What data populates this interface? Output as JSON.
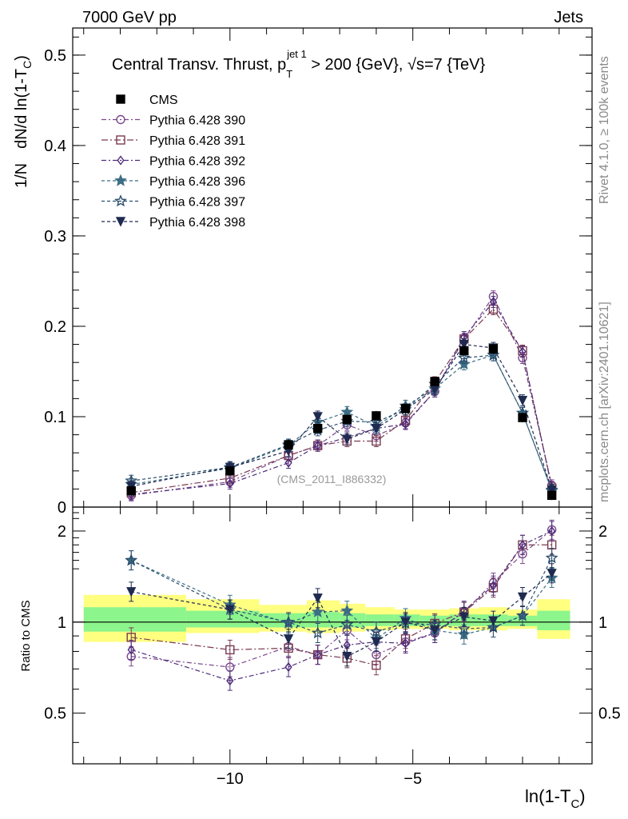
{
  "header": {
    "left": "7000 GeV pp",
    "right": "Jets"
  },
  "side_labels": {
    "right_top": "Rivet 4.1.0, ≥ 100k events",
    "right_bottom": "mcplots.cern.ch [arXiv:2401.10621]"
  },
  "chart_data": [
    {
      "type": "line",
      "panel": "main",
      "title": {
        "main": "Central Transv. Thrust, p",
        "sub": "T",
        "sup": "jet 1",
        "rest": " > 200 {GeV}, √s=7 {TeV}"
      },
      "ylabel": {
        "part1": "1/N",
        "part2": "dN/d ln(1-T",
        "sub": "C",
        "part3": ")"
      },
      "watermark": "(CMS_2011_I886332)",
      "ylim": [
        0,
        0.53
      ],
      "yticks": [
        {
          "v": 0,
          "label": "0"
        },
        {
          "v": 0.1,
          "label": "0.1"
        },
        {
          "v": 0.2,
          "label": "0.2"
        },
        {
          "v": 0.3,
          "label": "0.3"
        },
        {
          "v": 0.4,
          "label": "0.4"
        },
        {
          "v": 0.5,
          "label": "0.5"
        }
      ],
      "x": [
        -12.7,
        -10.0,
        -8.4,
        -7.6,
        -6.8,
        -6.0,
        -5.2,
        -4.4,
        -3.6,
        -2.8,
        -2.0,
        -1.2
      ],
      "series": [
        {
          "name": "CMS",
          "marker": "square-filled",
          "color": "#000000",
          "dash": "",
          "values": [
            0.018,
            0.04,
            0.069,
            0.087,
            0.097,
            0.101,
            0.109,
            0.139,
            0.173,
            0.175,
            0.099,
            0.013
          ]
        },
        {
          "name": "Pythia 6.428 390",
          "marker": "circle",
          "color": "#7b4a8c",
          "dash": "6,3,2,3",
          "values": [
            0.013,
            0.028,
            0.057,
            0.068,
            0.091,
            0.079,
            0.093,
            0.128,
            0.186,
            0.233,
            0.165,
            0.024
          ]
        },
        {
          "name": "Pythia 6.428 391",
          "marker": "square",
          "color": "#7a3b52",
          "dash": "8,3,2,3",
          "values": [
            0.016,
            0.032,
            0.057,
            0.068,
            0.073,
            0.073,
            0.096,
            0.138,
            0.186,
            0.219,
            0.173,
            0.021
          ]
        },
        {
          "name": "Pythia 6.428 392",
          "marker": "diamond",
          "color": "#4d2b7a",
          "dash": "6,3,2,3",
          "values": [
            0.014,
            0.026,
            0.049,
            0.068,
            0.077,
            0.087,
            0.092,
            0.128,
            0.188,
            0.227,
            0.172,
            0.022
          ]
        },
        {
          "name": "Pythia 6.428 396",
          "marker": "star-filled",
          "color": "#3c6e85",
          "dash": "4,3",
          "values": [
            0.025,
            0.043,
            0.068,
            0.094,
            0.105,
            0.089,
            0.112,
            0.131,
            0.158,
            0.168,
            0.104,
            0.018
          ]
        },
        {
          "name": "Pythia 6.428 397",
          "marker": "star",
          "color": "#2d4f6e",
          "dash": "4,3",
          "values": [
            0.029,
            0.044,
            0.069,
            0.085,
            0.095,
            0.094,
            0.108,
            0.136,
            0.165,
            0.168,
            0.104,
            0.019
          ]
        },
        {
          "name": "Pythia 6.428 398",
          "marker": "triangle-down-filled",
          "color": "#1f2a50",
          "dash": "4,3",
          "values": [
            0.023,
            0.044,
            0.062,
            0.1,
            0.075,
            0.087,
            0.108,
            0.13,
            0.18,
            0.176,
            0.118,
            0.019
          ]
        }
      ]
    },
    {
      "type": "line",
      "panel": "ratio",
      "ylabel": "Ratio to CMS",
      "xlabel": {
        "main": "ln(1-T",
        "sub": "C",
        "rest": ")"
      },
      "xlim": [
        -14.3,
        -0.1
      ],
      "ylim": [
        0.34,
        2.4
      ],
      "yticks": [
        {
          "v": 0.5,
          "label": "0.5"
        },
        {
          "v": 1,
          "label": "1"
        },
        {
          "v": 2,
          "label": "2"
        }
      ],
      "xticks": [
        {
          "v": -10,
          "label": "−10"
        },
        {
          "v": -5,
          "label": "−5"
        }
      ],
      "bands": {
        "edges": [
          -14.0,
          -11.2,
          -9.2,
          -7.9,
          -7.0,
          -6.3,
          -5.5,
          -4.8,
          -4.0,
          -3.2,
          -2.4,
          -1.6,
          -0.7
        ],
        "yellow_low": [
          0.86,
          0.92,
          0.93,
          0.92,
          0.93,
          0.94,
          0.95,
          0.95,
          0.94,
          0.94,
          0.95,
          0.88
        ],
        "yellow_high": [
          1.23,
          1.19,
          1.14,
          1.18,
          1.15,
          1.12,
          1.1,
          1.1,
          1.11,
          1.12,
          1.1,
          1.19
        ],
        "green_low": [
          0.93,
          0.96,
          0.96,
          0.96,
          0.96,
          0.97,
          0.97,
          0.97,
          0.97,
          0.97,
          0.97,
          0.94
        ],
        "green_high": [
          1.12,
          1.09,
          1.07,
          1.08,
          1.07,
          1.06,
          1.06,
          1.05,
          1.06,
          1.06,
          1.05,
          1.09
        ]
      },
      "series": [
        {
          "name": "Pythia 6.428 390",
          "values": [
            0.77,
            0.71,
            0.83,
            0.78,
            0.94,
            0.78,
            0.86,
            0.92,
            1.08,
            1.35,
            1.68,
            2.02
          ]
        },
        {
          "name": "Pythia 6.428 391",
          "values": [
            0.89,
            0.81,
            0.82,
            0.78,
            0.76,
            0.72,
            0.88,
            0.99,
            1.08,
            1.3,
            1.8,
            1.8
          ]
        },
        {
          "name": "Pythia 6.428 392",
          "values": [
            0.81,
            0.64,
            0.71,
            0.78,
            0.84,
            0.86,
            0.85,
            0.92,
            1.09,
            1.32,
            1.8,
            2.0
          ]
        },
        {
          "name": "Pythia 6.428 396",
          "values": [
            1.6,
            1.14,
            0.99,
            1.08,
            1.09,
            0.88,
            1.03,
            0.94,
            0.91,
            0.96,
            1.05,
            1.4
          ]
        },
        {
          "name": "Pythia 6.428 397",
          "values": [
            1.6,
            1.1,
            1.0,
            0.92,
            0.98,
            0.93,
            0.99,
            0.98,
            0.95,
            0.96,
            1.05,
            1.63
          ]
        },
        {
          "name": "Pythia 6.428 398",
          "values": [
            1.26,
            1.1,
            0.88,
            1.2,
            0.77,
            0.86,
            1.0,
            0.94,
            1.04,
            1.01,
            1.21,
            1.45
          ]
        }
      ]
    }
  ]
}
